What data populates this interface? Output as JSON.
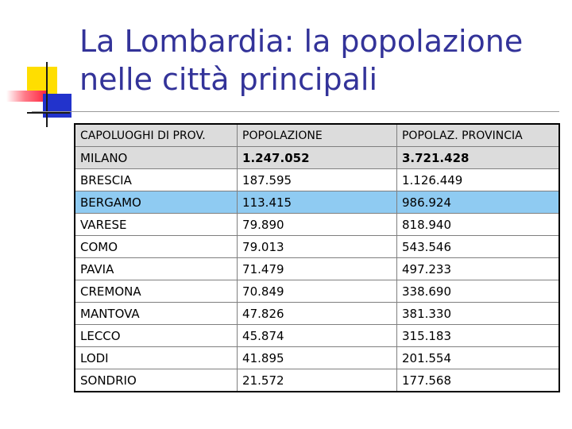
{
  "slide": {
    "title_line1": "La Lombardia: la popolazione",
    "title_line2": "nelle città principali"
  },
  "colors": {
    "title": "#333399",
    "header_row_bg": "#dcdcdc",
    "highlight_row_bg": "#8fcbf2"
  },
  "table": {
    "headers": [
      "CAPOLUOGHI DI PROV.",
      "POPOLAZIONE",
      "POPOLAZ. PROVINCIA"
    ],
    "rows": [
      [
        "MILANO",
        "1.247.052",
        "3.721.428"
      ],
      [
        "BRESCIA",
        "187.595",
        "1.126.449"
      ],
      [
        "BERGAMO",
        "113.415",
        "986.924"
      ],
      [
        "VARESE",
        "79.890",
        "818.940"
      ],
      [
        "COMO",
        "79.013",
        "543.546"
      ],
      [
        "PAVIA",
        "71.479",
        "497.233"
      ],
      [
        "CREMONA",
        "70.849",
        "338.690"
      ],
      [
        "MANTOVA",
        "47.826",
        "381.330"
      ],
      [
        "LECCO",
        "45.874",
        "315.183"
      ],
      [
        "LODI",
        "41.895",
        "201.554"
      ],
      [
        "SONDRIO",
        "21.572",
        "177.568"
      ]
    ]
  }
}
